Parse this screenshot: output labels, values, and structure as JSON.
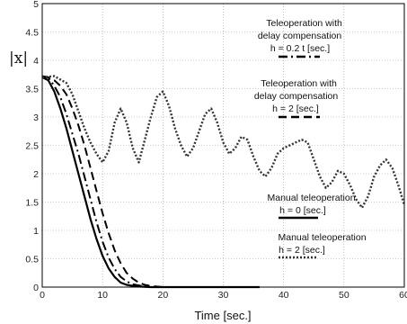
{
  "chart_data": {
    "type": "line",
    "xlabel": "Time [sec.]",
    "ylabel": "|x|",
    "xlim": [
      0,
      60
    ],
    "ylim": [
      0,
      5
    ],
    "x_ticks": [
      "0",
      "10",
      "20",
      "30",
      "40",
      "50",
      "60"
    ],
    "y_ticks": [
      "0",
      "0.5",
      "1",
      "1.5",
      "2",
      "2.5",
      "3",
      "3.5",
      "4",
      "4.5",
      "5"
    ],
    "grid": true,
    "annotations": [
      {
        "id": "a1",
        "lines": [
          "Teleoperation with",
          "delay compensation",
          "h = 0.2 t [sec.]"
        ]
      },
      {
        "id": "a2",
        "lines": [
          "Teleoperation with",
          "delay compensation",
          "h = 2 [sec.]"
        ]
      },
      {
        "id": "a3",
        "lines": [
          "Manual teleoperation",
          "h = 0 [sec.]"
        ]
      },
      {
        "id": "a4",
        "lines": [
          "Manual teleoperation",
          "h = 2 [sec.]"
        ]
      }
    ],
    "series": [
      {
        "id": "manual-h0",
        "style": "solid",
        "x": [
          0,
          1,
          2,
          3,
          4,
          5,
          6,
          7,
          8,
          9,
          10,
          11,
          12,
          13,
          14,
          15,
          16,
          18,
          20,
          25,
          30,
          36
        ],
        "y": [
          3.7,
          3.65,
          3.45,
          3.15,
          2.8,
          2.4,
          2.0,
          1.6,
          1.2,
          0.85,
          0.55,
          0.33,
          0.18,
          0.08,
          0.04,
          0.02,
          0.01,
          0.0,
          0.0,
          0.0,
          0.0,
          0.0
        ]
      },
      {
        "id": "delay-comp-h02t",
        "style": "dashdot",
        "x": [
          0,
          1,
          2,
          3,
          4,
          5,
          6,
          7,
          8,
          9,
          10,
          11,
          12,
          13,
          14,
          15,
          16,
          17,
          18,
          20,
          25,
          30,
          36
        ],
        "y": [
          3.7,
          3.7,
          3.55,
          3.35,
          3.05,
          2.7,
          2.35,
          1.95,
          1.55,
          1.15,
          0.8,
          0.52,
          0.32,
          0.18,
          0.1,
          0.05,
          0.03,
          0.01,
          0.0,
          0.0,
          0.0,
          0.0,
          0.0
        ]
      },
      {
        "id": "delay-comp-h2",
        "style": "dashed",
        "x": [
          0,
          1,
          2,
          3,
          4,
          5,
          6,
          7,
          8,
          9,
          10,
          11,
          12,
          13,
          14,
          15,
          16,
          17,
          18,
          19,
          20,
          25,
          30,
          36
        ],
        "y": [
          3.72,
          3.7,
          3.65,
          3.55,
          3.4,
          3.15,
          2.85,
          2.5,
          2.1,
          1.7,
          1.3,
          0.95,
          0.65,
          0.42,
          0.25,
          0.15,
          0.08,
          0.04,
          0.02,
          0.01,
          0.0,
          0.0,
          0.0,
          0.0
        ]
      },
      {
        "id": "manual-h2",
        "style": "dotted",
        "x": [
          0,
          2,
          4,
          5,
          6,
          7,
          8,
          9,
          10,
          11,
          12,
          13,
          14,
          15,
          16,
          17,
          18,
          19,
          20,
          21,
          22,
          23,
          24,
          25,
          26,
          27,
          28,
          29,
          30,
          31,
          32,
          33,
          34,
          35,
          36,
          37,
          38,
          39,
          40,
          41,
          42,
          43,
          44,
          45,
          46,
          47,
          48,
          49,
          50,
          51,
          52,
          53,
          54,
          55,
          56,
          57,
          58,
          59,
          60
        ],
        "y": [
          3.7,
          3.72,
          3.6,
          3.4,
          3.1,
          2.8,
          2.55,
          2.35,
          2.2,
          2.4,
          2.9,
          3.15,
          2.9,
          2.45,
          2.2,
          2.6,
          3.0,
          3.35,
          3.45,
          3.2,
          2.8,
          2.5,
          2.3,
          2.45,
          2.75,
          3.05,
          3.15,
          2.9,
          2.55,
          2.35,
          2.45,
          2.65,
          2.6,
          2.3,
          2.05,
          1.95,
          2.1,
          2.35,
          2.45,
          2.5,
          2.55,
          2.6,
          2.55,
          2.25,
          1.95,
          1.75,
          1.85,
          2.05,
          2.0,
          1.8,
          1.55,
          1.4,
          1.6,
          1.95,
          2.15,
          2.25,
          2.1,
          1.8,
          1.45
        ]
      }
    ]
  }
}
